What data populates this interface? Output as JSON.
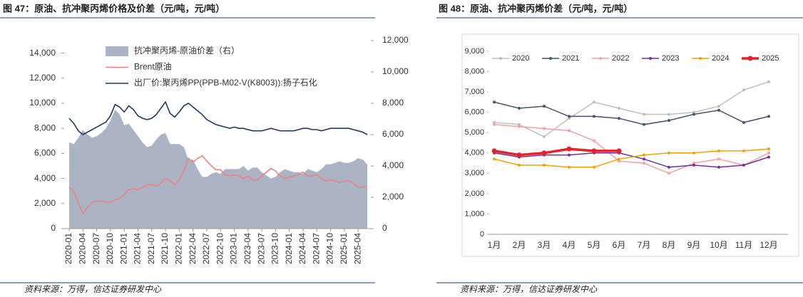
{
  "chart_data": [
    {
      "type": "line",
      "title": "图 47：原油、抗冲聚丙烯价格及价差（元/吨，元/吨）",
      "categories": [
        "2020-01",
        null,
        null,
        "2020-04",
        null,
        null,
        "2020-07",
        null,
        null,
        "2020-10",
        null,
        null,
        "2021-01",
        null,
        null,
        "2021-04",
        null,
        null,
        "2021-07",
        null,
        null,
        "2021-10",
        null,
        null,
        "2022-01",
        null,
        null,
        "2022-04",
        null,
        null,
        "2022-07",
        null,
        null,
        "2022-10",
        null,
        null,
        "2023-01",
        null,
        null,
        "2023-04",
        null,
        null,
        "2023-07",
        null,
        null,
        "2023-10",
        null,
        null,
        "2024-01",
        null,
        null,
        "2024-04",
        null,
        null,
        "2024-07",
        null,
        null,
        "2024-10",
        null,
        null,
        "2025-01",
        null,
        null,
        "2025-04",
        null,
        null
      ],
      "series": [
        {
          "name": "抗冲聚丙烯-原油价差（右）",
          "type": "area",
          "axis": "y2",
          "color": "#aab4c4",
          "values": [
            5500,
            5400,
            5800,
            6300,
            6000,
            5800,
            5900,
            6100,
            6400,
            6900,
            7600,
            7300,
            6600,
            6700,
            6300,
            5900,
            5500,
            5200,
            5300,
            5700,
            6000,
            6100,
            5400,
            5400,
            5400,
            5200,
            4400,
            4400,
            3800,
            3300,
            3300,
            3500,
            3600,
            3500,
            3800,
            3800,
            3800,
            3800,
            4000,
            3700,
            3900,
            3900,
            3600,
            3400,
            3200,
            3300,
            3600,
            3800,
            3700,
            3600,
            3600,
            3500,
            3800,
            3700,
            3600,
            3800,
            4100,
            4100,
            4200,
            4300,
            4200,
            4200,
            4300,
            4500,
            4400,
            4100
          ]
        },
        {
          "name": "Brent原油",
          "type": "line",
          "color": "#f08080",
          "values": [
            3300,
            3000,
            2000,
            1200,
            1700,
            2100,
            2200,
            2200,
            2100,
            2100,
            2300,
            2400,
            2700,
            3100,
            3200,
            3100,
            3300,
            3500,
            3500,
            3400,
            3600,
            4000,
            3800,
            3500,
            3900,
            4600,
            5600,
            5300,
            5600,
            5800,
            5400,
            5000,
            4700,
            4700,
            4300,
            4200,
            4300,
            4200,
            4000,
            4200,
            3900,
            3900,
            4200,
            4500,
            4800,
            4600,
            4200,
            4000,
            4100,
            4200,
            4300,
            4500,
            4200,
            4200,
            4300,
            4000,
            3800,
            3900,
            3800,
            3700,
            3800,
            3800,
            3600,
            3300,
            3300,
            3400
          ]
        },
        {
          "name": "出厂价:聚丙烯PP(PPB-M02-V(K8003)):扬子石化",
          "type": "line",
          "color": "#1f3864",
          "values": [
            8800,
            8400,
            7800,
            7500,
            7700,
            7900,
            8100,
            8300,
            8500,
            9000,
            9900,
            9700,
            9300,
            9800,
            9500,
            9000,
            8800,
            8700,
            8800,
            9100,
            9600,
            10100,
            9200,
            8900,
            9300,
            9800,
            10000,
            9700,
            9400,
            9100,
            8700,
            8500,
            8300,
            8200,
            8100,
            8000,
            8100,
            8000,
            8000,
            7900,
            7800,
            7800,
            7800,
            7900,
            8000,
            7900,
            7800,
            7800,
            7800,
            7800,
            7900,
            8000,
            8000,
            7900,
            7900,
            7800,
            7900,
            8000,
            8000,
            8000,
            8000,
            8000,
            7900,
            7800,
            7700,
            7500
          ]
        }
      ],
      "ylim": [
        0,
        15000
      ],
      "yticks": [
        0,
        {
          "value": 2000,
          "label": "2,000"
        },
        {
          "value": 4000,
          "label": "4,000"
        },
        {
          "value": 6000,
          "label": "6,000"
        },
        {
          "value": 8000,
          "label": "8,000"
        },
        {
          "value": 10000,
          "label": "10,000"
        },
        {
          "value": 12000,
          "label": "12,000"
        },
        {
          "value": 14000,
          "label": "14,000"
        }
      ],
      "y2lim": [
        0,
        12000
      ],
      "y2ticks": [
        0,
        {
          "value": 2000,
          "label": "2,000"
        },
        {
          "value": 4000,
          "label": "4,000"
        },
        {
          "value": 6000,
          "label": "6,000"
        },
        {
          "value": 8000,
          "label": "8,000"
        },
        {
          "value": 10000,
          "label": "10,000"
        },
        {
          "value": 12000,
          "label": "12,000"
        }
      ],
      "legend": "top-left",
      "source": "资料来源：万得，信达证券研发中心"
    },
    {
      "type": "line",
      "title": "图 48：原油、抗冲聚丙烯价差（元/吨，元/吨）",
      "categories": [
        "1月",
        "2月",
        "3月",
        "4月",
        "5月",
        "6月",
        "7月",
        "8月",
        "9月",
        "10月",
        "11月",
        "12月"
      ],
      "series": [
        {
          "name": "2020",
          "color": "#bfbfbf",
          "line_width": 1.5,
          "values": [
            5500,
            5400,
            4800,
            5700,
            6500,
            6200,
            5900,
            5900,
            6000,
            6300,
            7100,
            7500
          ]
        },
        {
          "name": "2021",
          "color": "#44546a",
          "line_width": 1.5,
          "values": [
            6500,
            6200,
            6300,
            5800,
            5800,
            5700,
            5400,
            5600,
            5900,
            6100,
            5500,
            5800
          ]
        },
        {
          "name": "2022",
          "color": "#f4a0a0",
          "line_width": 1.5,
          "values": [
            5400,
            5300,
            5200,
            5100,
            4600,
            3600,
            3500,
            3000,
            3500,
            3700,
            3400,
            4000
          ]
        },
        {
          "name": "2023",
          "color": "#7030a0",
          "line_width": 1.5,
          "values": [
            4000,
            3800,
            3900,
            3900,
            4000,
            4000,
            3700,
            3300,
            3400,
            3300,
            3400,
            3800
          ]
        },
        {
          "name": "2024",
          "color": "#f5a000",
          "line_width": 1.5,
          "values": [
            3700,
            3400,
            3400,
            3300,
            3300,
            3700,
            3900,
            4000,
            4000,
            4100,
            4100,
            4200
          ]
        },
        {
          "name": "2025",
          "color": "#e8202a",
          "line_width": 3.5,
          "values": [
            4100,
            3900,
            4000,
            4200,
            4100,
            4100,
            null,
            null,
            null,
            null,
            null,
            null
          ]
        }
      ],
      "ylim": [
        0,
        9000
      ],
      "yticks": [
        0,
        {
          "value": 1000,
          "label": "1,000"
        },
        {
          "value": 2000,
          "label": "2,000"
        },
        {
          "value": 3000,
          "label": "3,000"
        },
        {
          "value": 4000,
          "label": "4,000"
        },
        {
          "value": 5000,
          "label": "5,000"
        },
        {
          "value": 6000,
          "label": "6,000"
        },
        {
          "value": 7000,
          "label": "7,000"
        },
        {
          "value": 8000,
          "label": "8,000"
        },
        {
          "value": 9000,
          "label": "9,000"
        }
      ],
      "legend": "top",
      "source": "资料来源：万得，信达证券研发中心"
    }
  ]
}
